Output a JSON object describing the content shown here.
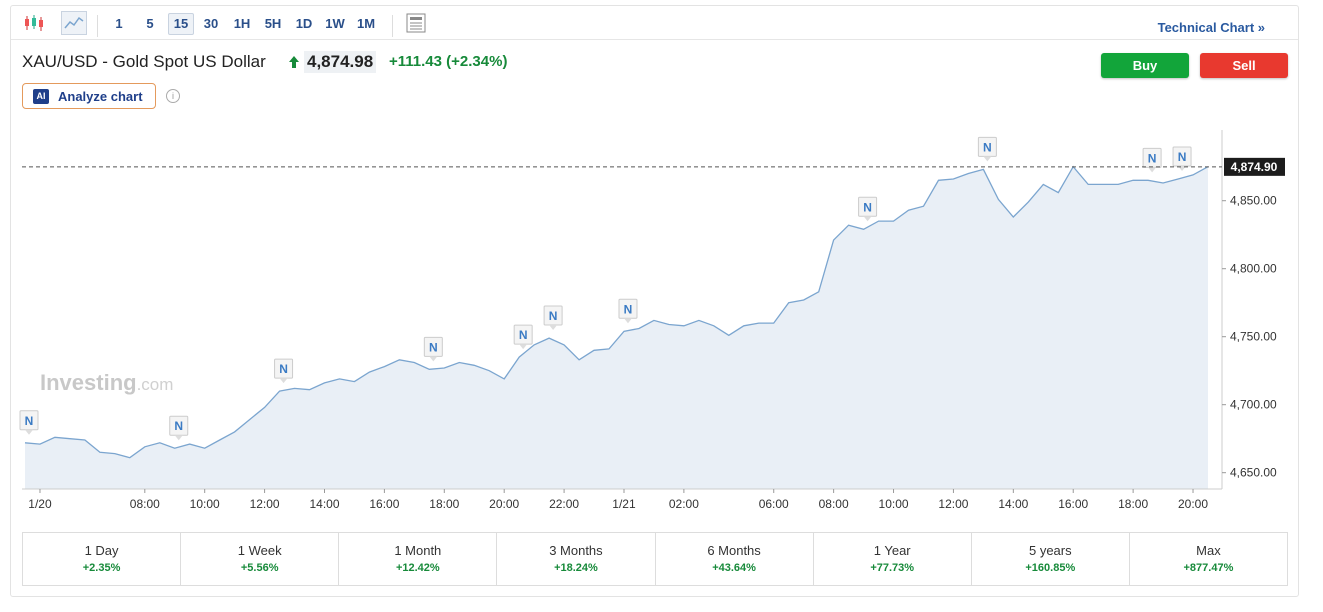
{
  "toolbar": {
    "intervals": [
      "1",
      "5",
      "15",
      "30",
      "1H",
      "5H",
      "1D",
      "1W",
      "1M"
    ],
    "active": "15",
    "link": "Technical Chart »"
  },
  "header": {
    "title": "XAU/USD - Gold Spot US Dollar",
    "price": "4,874.98",
    "change": "+111.43",
    "change_pct": "(+2.34%)",
    "buy": "Buy",
    "sell": "Sell",
    "ai_badge": "AI",
    "analyze": "Analyze chart"
  },
  "chart_data": {
    "type": "line",
    "color": "#7ba5cf",
    "fill": "#e9eff6",
    "watermark": {
      "brand": "Investing",
      "suffix": ".com"
    },
    "news_label": "N",
    "categories": [
      null,
      "1/20",
      null,
      null,
      null,
      null,
      null,
      null,
      "08:00",
      null,
      null,
      null,
      "10:00",
      null,
      null,
      null,
      "12:00",
      null,
      null,
      null,
      "14:00",
      null,
      null,
      null,
      "16:00",
      null,
      null,
      null,
      "18:00",
      null,
      null,
      null,
      "20:00",
      null,
      null,
      null,
      "22:00",
      null,
      null,
      null,
      "1/21",
      null,
      null,
      null,
      "02:00",
      null,
      null,
      null,
      null,
      null,
      "06:00",
      null,
      null,
      null,
      "08:00",
      null,
      null,
      null,
      "10:00",
      null,
      null,
      null,
      "12:00",
      null,
      null,
      null,
      "14:00",
      null,
      null,
      null,
      "16:00",
      null,
      null,
      null,
      "18:00",
      null,
      null,
      null,
      "20:00",
      null
    ],
    "values": [
      4672,
      4671,
      4676,
      4675,
      4674,
      4665,
      4664,
      4661,
      4669,
      4672,
      4668,
      4671,
      4668,
      4674,
      4680,
      4689,
      4698,
      4710,
      4712,
      4711,
      4716,
      4719,
      4717,
      4724,
      4728,
      4733,
      4731,
      4726,
      4727,
      4731,
      4729,
      4725,
      4719,
      4735,
      4744,
      4749,
      4744,
      4733,
      4740,
      4741,
      4754,
      4756,
      4762,
      4759,
      4758,
      4762,
      4758,
      4751,
      4758,
      4760,
      4760,
      4775,
      4777,
      4783,
      4821,
      4832,
      4829,
      4835,
      4835,
      4843,
      4846,
      4865,
      4866,
      4870,
      4873,
      4851,
      4838,
      4849,
      4862,
      4856,
      4875,
      4862,
      4862,
      4862,
      4865,
      4865,
      4863,
      4866,
      4869,
      4875
    ],
    "ylim": [
      4638,
      4902
    ],
    "yticks": [
      {
        "value": 4650,
        "label": "4,650.00"
      },
      {
        "value": 4700,
        "label": "4,700.00"
      },
      {
        "value": 4750,
        "label": "4,750.00"
      },
      {
        "value": 4800,
        "label": "4,800.00"
      },
      {
        "value": 4850,
        "label": "4,850.00"
      }
    ],
    "last_price": {
      "value": 4874.9,
      "label": "4,874.90"
    }
  },
  "periods": [
    {
      "label": "1 Day",
      "change": "+2.35%"
    },
    {
      "label": "1 Week",
      "change": "+5.56%"
    },
    {
      "label": "1 Month",
      "change": "+12.42%"
    },
    {
      "label": "3 Months",
      "change": "+18.24%"
    },
    {
      "label": "6 Months",
      "change": "+43.64%"
    },
    {
      "label": "1 Year",
      "change": "+77.73%"
    },
    {
      "label": "5 years",
      "change": "+160.85%"
    },
    {
      "label": "Max",
      "change": "+877.47%"
    }
  ]
}
